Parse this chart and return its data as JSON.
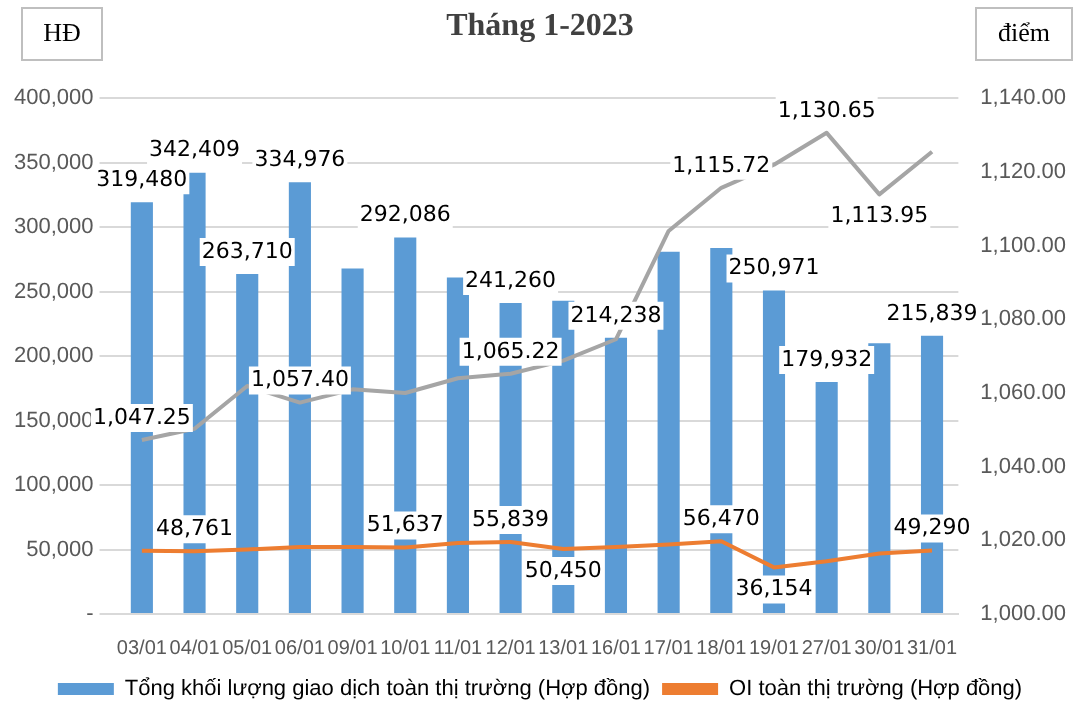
{
  "chart_data": {
    "type": "bar",
    "title": "Tháng 1-2023",
    "ylabel": "HĐ",
    "y2label": "điểm",
    "categories": [
      "03/01",
      "04/01",
      "05/01",
      "06/01",
      "09/01",
      "10/01",
      "11/01",
      "12/01",
      "13/01",
      "16/01",
      "17/01",
      "18/01",
      "19/01",
      "27/01",
      "30/01",
      "31/01"
    ],
    "series": [
      {
        "name": "Tổng khối lượng giao dịch toàn thị trường (Hợp đồng)",
        "color": "#5b9bd5",
        "values": [
          319480,
          342409,
          263710,
          334976,
          268000,
          292086,
          261000,
          241260,
          243000,
          214238,
          281000,
          284000,
          250971,
          179932,
          210000,
          215839
        ],
        "value_labels": [
          "319,480",
          "342,409",
          "263,710",
          "334,976",
          null,
          "292,086",
          null,
          "241,260",
          null,
          "214,238",
          null,
          null,
          "250,971",
          "179,932",
          null,
          "215,839"
        ]
      },
      {
        "name": "OI toàn thị trường (Hợp đồng)",
        "type": "line",
        "color": "#ed7d31",
        "values": [
          49000,
          48761,
          50000,
          52000,
          52000,
          51637,
          55000,
          55839,
          50450,
          52000,
          54000,
          56470,
          36154,
          41000,
          47000,
          49290
        ],
        "value_labels": [
          null,
          "48,761",
          null,
          null,
          null,
          "51,637",
          null,
          "55,839",
          "50,450",
          null,
          null,
          "56,470",
          "36,154",
          null,
          null,
          "49,290"
        ]
      },
      {
        "type": "line",
        "axis": "y2",
        "color": "#a5a5a5",
        "values": [
          1047.25,
          1050.3,
          1061.9,
          1057.4,
          1061,
          1060,
          1064,
          1065.22,
          1068.8,
          1074.6,
          1104,
          1115.72,
          1122,
          1130.65,
          1113.95,
          1125.5
        ],
        "value_labels": [
          "1,047.25",
          null,
          null,
          "1,057.40",
          null,
          null,
          null,
          "1,065.22",
          null,
          null,
          null,
          "1,115.72",
          null,
          "1,130.65",
          "1,113.95",
          null
        ]
      }
    ],
    "ylim": [
      0,
      400000
    ],
    "yticks": [
      {
        "value": 0,
        "label": "-"
      },
      {
        "value": 50000,
        "label": "50,000"
      },
      {
        "value": 100000,
        "label": "100,000"
      },
      {
        "value": 150000,
        "label": "150,000"
      },
      {
        "value": 200000,
        "label": "200,000"
      },
      {
        "value": 250000,
        "label": "250,000"
      },
      {
        "value": 300000,
        "label": "300,000"
      },
      {
        "value": 350000,
        "label": "350,000"
      },
      {
        "value": 400000,
        "label": "400,000"
      }
    ],
    "y2lim": [
      1000,
      1140
    ],
    "y2ticks": [
      {
        "value": 1000,
        "label": "1,000.00"
      },
      {
        "value": 1020,
        "label": "1,020.00"
      },
      {
        "value": 1040,
        "label": "1,040.00"
      },
      {
        "value": 1060,
        "label": "1,060.00"
      },
      {
        "value": 1080,
        "label": "1,080.00"
      },
      {
        "value": 1100,
        "label": "1,100.00"
      },
      {
        "value": 1120,
        "label": "1,120.00"
      },
      {
        "value": 1140,
        "label": "1,140.00"
      }
    ],
    "grid": "y",
    "legend": "bottom",
    "marker": "none"
  }
}
